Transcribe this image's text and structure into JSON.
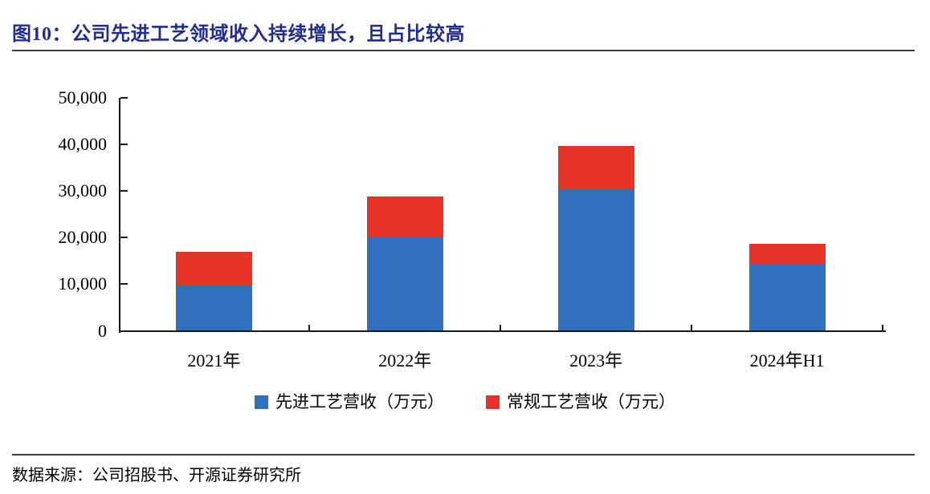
{
  "figure": {
    "title": "图10：公司先进工艺领域收入持续增长，且占比较高",
    "source": "数据来源：公司招股书、开源证券研究所"
  },
  "colors": {
    "title_navy": "#232C8F",
    "advanced_blue": "#3170BE",
    "regular_red": "#E93226",
    "axis_black": "#1a1a1a"
  },
  "chart_data": {
    "type": "bar",
    "stacked": true,
    "title": "公司先进工艺领域收入持续增长，且占比较高",
    "categories": [
      "2021年",
      "2022年",
      "2023年",
      "2024年H1"
    ],
    "series": [
      {
        "name": "先进工艺营收（万元）",
        "color_key": "advanced_blue",
        "values": [
          9700,
          20100,
          30300,
          14300
        ]
      },
      {
        "name": "常规工艺营收（万元）",
        "color_key": "regular_red",
        "values": [
          7200,
          8700,
          9300,
          4300
        ]
      }
    ],
    "stacked_totals": [
      16900,
      28800,
      39600,
      18600
    ],
    "xlabel": "",
    "ylabel": "",
    "ylim": [
      0,
      50000
    ],
    "y_ticks": [
      0,
      10000,
      20000,
      30000,
      40000,
      50000
    ],
    "y_tick_labels": [
      "0",
      "10,000",
      "20,000",
      "30,000",
      "40,000",
      "50,000"
    ],
    "grid": false,
    "legend_position": "bottom"
  }
}
